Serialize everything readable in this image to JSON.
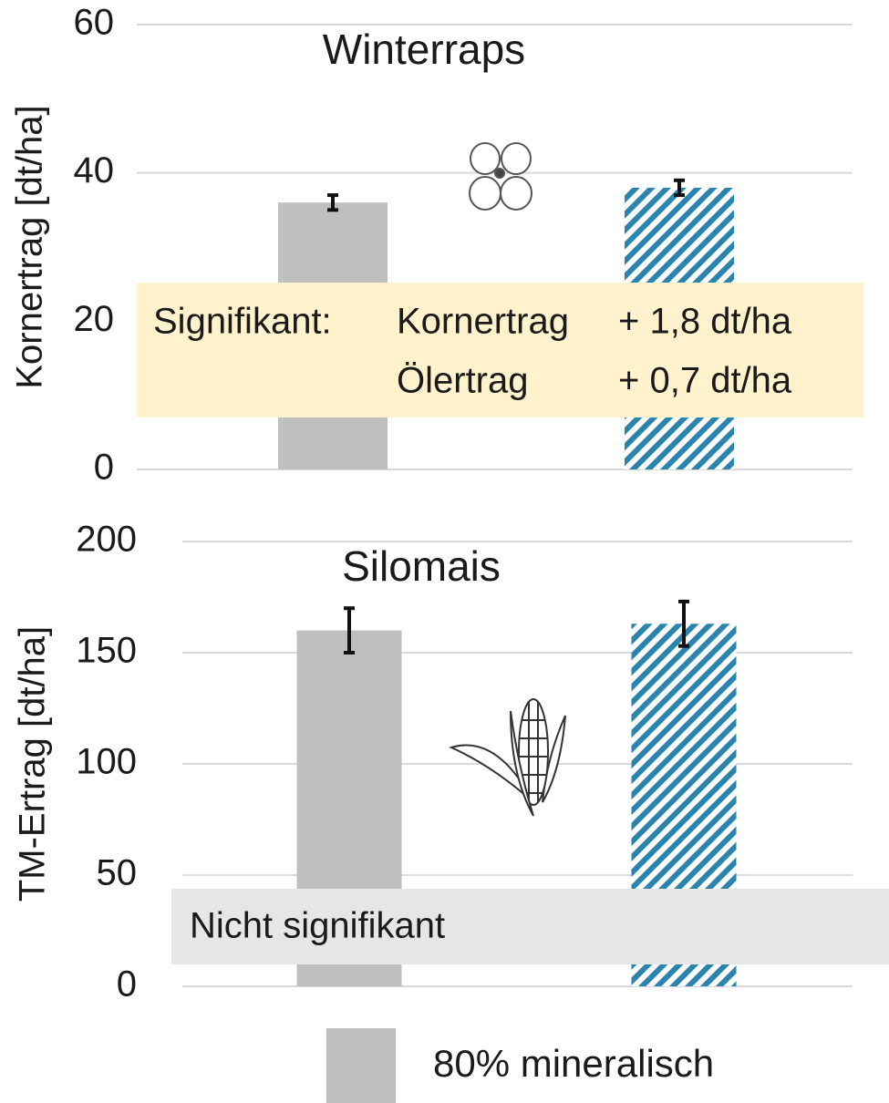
{
  "chart_data": [
    {
      "type": "bar",
      "title": "Winterraps",
      "y_label": "Kornertrag [dt/ha]",
      "ylim": [
        0,
        60
      ],
      "yticks": [
        0,
        20,
        40,
        60
      ],
      "grid": true,
      "series": [
        {
          "name": "80% mineralisch",
          "color": "#bfbfbf",
          "values": [
            36
          ],
          "errors": [
            1
          ]
        },
        {
          "color": "#2b84ad",
          "hatch": true,
          "values": [
            38
          ],
          "errors": [
            1
          ]
        }
      ],
      "annotation": {
        "label": "Signifikant:",
        "rows": [
          [
            "Kornertrag",
            "+ 1,8 dt/ha"
          ],
          [
            "Ölertrag",
            "+ 0,7 dt/ha"
          ]
        ],
        "color": "#fff2cc"
      }
    },
    {
      "type": "bar",
      "title": "Silomais",
      "y_label": "TM-Ertrag [dt/ha]",
      "ylim": [
        0,
        200
      ],
      "yticks": [
        0,
        50,
        100,
        150,
        200
      ],
      "grid": true,
      "series": [
        {
          "color": "#bfbfbf",
          "values": [
            160
          ],
          "errors": [
            10
          ]
        },
        {
          "color": "#2b84ad",
          "hatch": true,
          "values": [
            163
          ],
          "errors": [
            10
          ]
        }
      ],
      "annotation": {
        "label": "Nicht signifikant",
        "color": "#e6e6e6"
      }
    }
  ]
}
